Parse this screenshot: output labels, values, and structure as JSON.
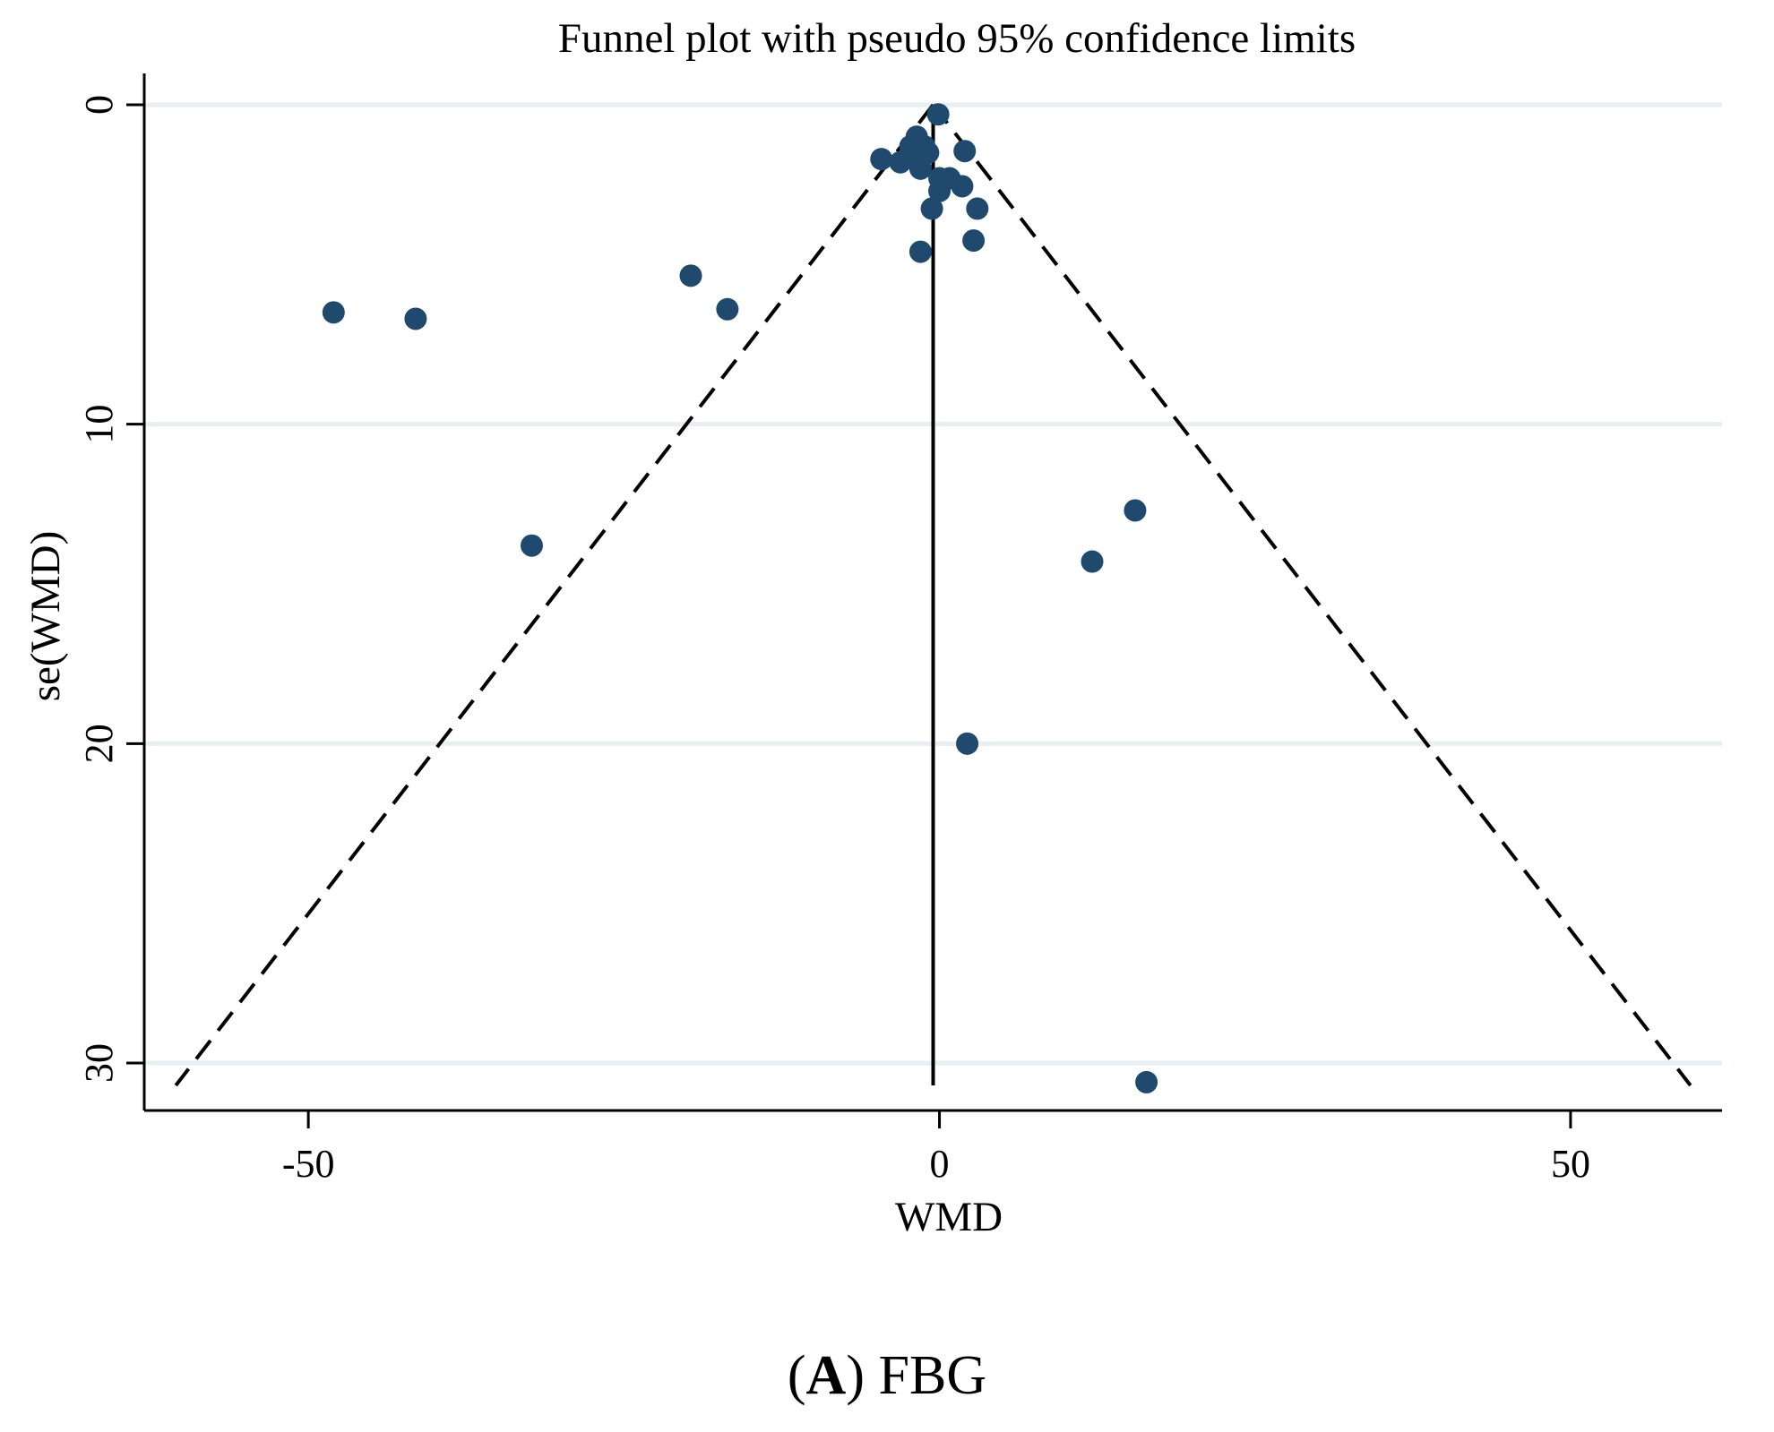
{
  "chart_data": {
    "type": "scatter",
    "title": "Funnel plot with pseudo 95% confidence limits",
    "xlabel": "WMD",
    "ylabel": "se(WMD)",
    "xlim": [
      -63,
      62
    ],
    "ylim": [
      0,
      31.5
    ],
    "y_reversed": true,
    "x_ticks": [
      -50,
      0,
      50
    ],
    "x_tick_labels": [
      "-50",
      "0",
      "50"
    ],
    "y_ticks": [
      0,
      10,
      20,
      30
    ],
    "y_tick_labels": [
      "0",
      "10",
      "20",
      "30"
    ],
    "grid": "horizontal",
    "pooled_estimate": -0.5,
    "funnel": {
      "apex": [
        -0.5,
        0
      ],
      "left_end": [
        -60.5,
        30.7
      ],
      "right_end": [
        59.5,
        30.7
      ]
    },
    "points": [
      {
        "x": -0.1,
        "y": 0.3
      },
      {
        "x": -1.8,
        "y": 1.0
      },
      {
        "x": -2.3,
        "y": 1.3
      },
      {
        "x": -1.2,
        "y": 1.3
      },
      {
        "x": -0.9,
        "y": 1.5
      },
      {
        "x": -2.0,
        "y": 1.7
      },
      {
        "x": -4.6,
        "y": 1.7
      },
      {
        "x": -3.1,
        "y": 1.8
      },
      {
        "x": -1.5,
        "y": 2.0
      },
      {
        "x": 2.0,
        "y": 1.45
      },
      {
        "x": 0.0,
        "y": 2.3
      },
      {
        "x": 0.8,
        "y": 2.3
      },
      {
        "x": 1.8,
        "y": 2.55
      },
      {
        "x": 0.0,
        "y": 2.7
      },
      {
        "x": -0.6,
        "y": 3.25
      },
      {
        "x": 3.0,
        "y": 3.25
      },
      {
        "x": 2.7,
        "y": 4.25
      },
      {
        "x": -1.5,
        "y": 4.6
      },
      {
        "x": -19.7,
        "y": 5.35
      },
      {
        "x": -16.8,
        "y": 6.4
      },
      {
        "x": -48.0,
        "y": 6.5
      },
      {
        "x": -41.5,
        "y": 6.7
      },
      {
        "x": -32.3,
        "y": 13.8
      },
      {
        "x": 15.5,
        "y": 12.7
      },
      {
        "x": 12.1,
        "y": 14.3
      },
      {
        "x": 2.2,
        "y": 20.0
      },
      {
        "x": 16.4,
        "y": 30.6
      }
    ]
  },
  "caption": {
    "open": "(",
    "letter": "A",
    "close": ")",
    "text": " FBG"
  },
  "colors": {
    "point": "#1f4a6e",
    "grid": "#e8eff3",
    "axis": "#000000"
  }
}
